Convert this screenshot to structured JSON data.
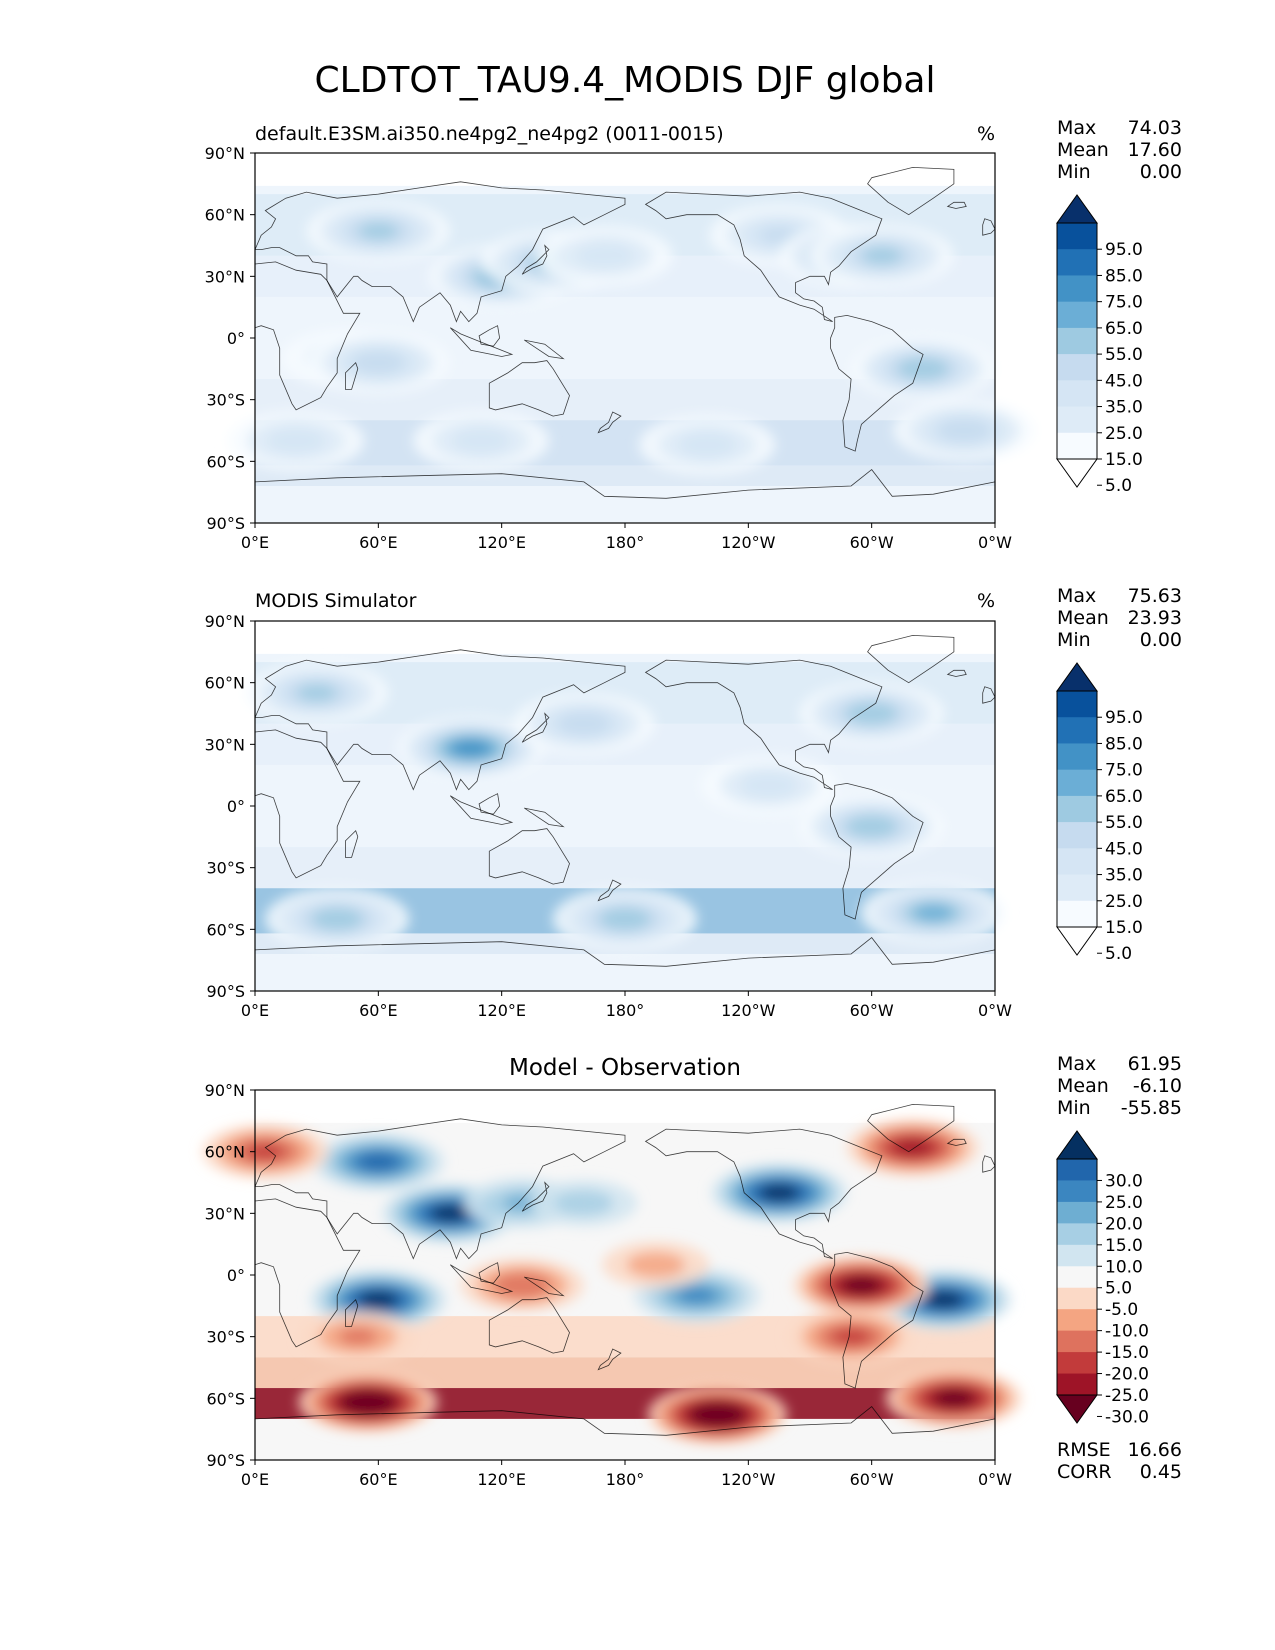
{
  "figure": {
    "title": "CLDTOT_TAU9.4_MODIS DJF global"
  },
  "chart_data": [
    {
      "type": "heatmap",
      "panel": "test",
      "title_left": "default.E3SM.ai350.ne4pg2_ne4pg2 (0011-0015)",
      "title_right": "%",
      "xticks": [
        "0°E",
        "60°E",
        "120°E",
        "180°",
        "120°W",
        "60°W",
        "0°W"
      ],
      "yticks": [
        "90°N",
        "60°N",
        "30°N",
        "0°",
        "30°S",
        "60°S",
        "90°S"
      ],
      "xlim": [
        0,
        360
      ],
      "ylim": [
        -90,
        90
      ],
      "stats": {
        "Max": "74.03",
        "Mean": "17.60",
        "Min": "0.00"
      },
      "colorbar": {
        "labels": [
          "95.0",
          "85.0",
          "75.0",
          "65.0",
          "55.0",
          "45.0",
          "35.0",
          "25.0",
          "15.0",
          "5.0"
        ],
        "colors": [
          "#08306b",
          "#08519c",
          "#2171b5",
          "#4292c6",
          "#6baed6",
          "#9ecae1",
          "#c6dbef",
          "#d5e5f4",
          "#deebf7",
          "#f7fbff",
          "#ffffff"
        ],
        "extend": "both"
      },
      "features": [
        {
          "lon": 60,
          "lat": 52,
          "value": 45
        },
        {
          "lon": 120,
          "lat": 30,
          "value": 55
        },
        {
          "lon": 145,
          "lat": 37,
          "value": 50
        },
        {
          "lon": 170,
          "lat": 40,
          "value": 30
        },
        {
          "lon": 255,
          "lat": 50,
          "value": 35
        },
        {
          "lon": 290,
          "lat": 40,
          "value": 50
        },
        {
          "lon": 305,
          "lat": 40,
          "value": 45
        },
        {
          "lon": 45,
          "lat": -10,
          "value": 25
        },
        {
          "lon": 60,
          "lat": -12,
          "value": 40
        },
        {
          "lon": 325,
          "lat": -15,
          "value": 50
        },
        {
          "lon": 20,
          "lat": -50,
          "value": 30
        },
        {
          "lon": 110,
          "lat": -50,
          "value": 30
        },
        {
          "lon": 220,
          "lat": -52,
          "value": 30
        },
        {
          "lon": 345,
          "lat": -45,
          "value": 40
        },
        {
          "lon": 215,
          "lat": 0,
          "value": 4
        }
      ]
    },
    {
      "type": "heatmap",
      "panel": "reference",
      "title_left": "MODIS Simulator",
      "title_right": "%",
      "xticks": [
        "0°E",
        "60°E",
        "120°E",
        "180°",
        "120°W",
        "60°W",
        "0°W"
      ],
      "yticks": [
        "90°N",
        "60°N",
        "30°N",
        "0°",
        "30°S",
        "60°S",
        "90°S"
      ],
      "xlim": [
        0,
        360
      ],
      "ylim": [
        -90,
        90
      ],
      "stats": {
        "Max": "75.63",
        "Mean": "23.93",
        "Min": "0.00"
      },
      "colorbar": {
        "labels": [
          "95.0",
          "85.0",
          "75.0",
          "65.0",
          "55.0",
          "45.0",
          "35.0",
          "25.0",
          "15.0",
          "5.0"
        ],
        "colors": [
          "#08306b",
          "#08519c",
          "#2171b5",
          "#4292c6",
          "#6baed6",
          "#9ecae1",
          "#c6dbef",
          "#d5e5f4",
          "#deebf7",
          "#f7fbff",
          "#ffffff"
        ],
        "extend": "both"
      },
      "features": [
        {
          "lon": 105,
          "lat": 28,
          "value": 65
        },
        {
          "lon": 30,
          "lat": 55,
          "value": 45
        },
        {
          "lon": 160,
          "lat": 40,
          "value": 40
        },
        {
          "lon": 300,
          "lat": 45,
          "value": 50
        },
        {
          "lon": 300,
          "lat": -10,
          "value": 50
        },
        {
          "lon": 40,
          "lat": -55,
          "value": 50
        },
        {
          "lon": 180,
          "lat": -55,
          "value": 50
        },
        {
          "lon": 330,
          "lat": -52,
          "value": 55
        },
        {
          "lon": 250,
          "lat": 10,
          "value": 30
        }
      ]
    },
    {
      "type": "heatmap",
      "panel": "difference",
      "title_center": "Model - Observation",
      "xticks": [
        "0°E",
        "60°E",
        "120°E",
        "180°",
        "120°W",
        "60°W",
        "0°W"
      ],
      "yticks": [
        "90°N",
        "60°N",
        "30°N",
        "0°",
        "30°S",
        "60°S",
        "90°S"
      ],
      "xlim": [
        0,
        360
      ],
      "ylim": [
        -90,
        90
      ],
      "stats": {
        "Max": "61.95",
        "Mean": "-6.10",
        "Min": "-55.85"
      },
      "metrics": {
        "RMSE": "16.66",
        "CORR": "0.45"
      },
      "colorbar": {
        "labels": [
          "30.0",
          "25.0",
          "20.0",
          "15.0",
          "10.0",
          "5.0",
          "-5.0",
          "-10.0",
          "-15.0",
          "-20.0",
          "-25.0",
          "-30.0"
        ],
        "colors": [
          "#053061",
          "#2166ac",
          "#3b86c0",
          "#6eaed2",
          "#a7cfe4",
          "#d1e5f0",
          "#f7f7f7",
          "#fbd9c6",
          "#f4a582",
          "#de725e",
          "#c23b3b",
          "#9e1427",
          "#67001f"
        ],
        "extend": "both"
      },
      "features": [
        {
          "lon": 60,
          "lat": 55,
          "value": 25
        },
        {
          "lon": 95,
          "lat": 30,
          "value": 30
        },
        {
          "lon": 60,
          "lat": -12,
          "value": 30
        },
        {
          "lon": 130,
          "lat": 35,
          "value": 15
        },
        {
          "lon": 160,
          "lat": 35,
          "value": 12
        },
        {
          "lon": 215,
          "lat": -10,
          "value": 20
        },
        {
          "lon": 255,
          "lat": 40,
          "value": 30
        },
        {
          "lon": 335,
          "lat": -12,
          "value": 30
        },
        {
          "lon": 295,
          "lat": -5,
          "value": -30
        },
        {
          "lon": 55,
          "lat": -62,
          "value": -35
        },
        {
          "lon": 225,
          "lat": -68,
          "value": -35
        },
        {
          "lon": 340,
          "lat": -60,
          "value": -30
        },
        {
          "lon": 130,
          "lat": -5,
          "value": -18
        },
        {
          "lon": 50,
          "lat": -30,
          "value": -15
        },
        {
          "lon": 5,
          "lat": 60,
          "value": -20
        },
        {
          "lon": 320,
          "lat": 62,
          "value": -25
        },
        {
          "lon": 195,
          "lat": 5,
          "value": -12
        },
        {
          "lon": 290,
          "lat": -30,
          "value": -20
        }
      ]
    }
  ]
}
